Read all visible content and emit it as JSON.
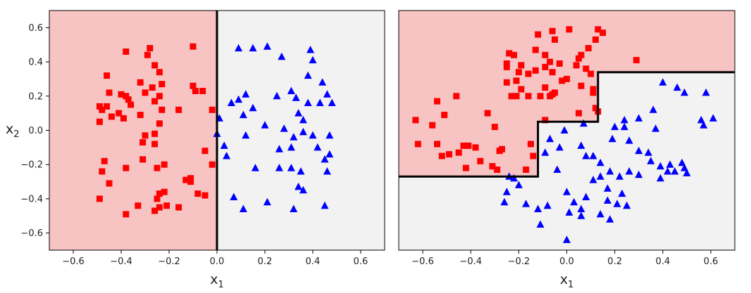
{
  "colors": {
    "class0_marker": "#ff0000",
    "class1_marker": "#0000ff",
    "class0_region": "#f8c3c3",
    "class1_region": "#f2f2f2",
    "boundary": "#000000",
    "frame": "#000000"
  },
  "chart_data": [
    {
      "type": "scatter",
      "xlabel_base": "x",
      "xlabel_sub": "1",
      "ylabel_base": "x",
      "ylabel_sub": "2",
      "xlim": [
        -0.7,
        0.7
      ],
      "ylim": [
        -0.7,
        0.7
      ],
      "xticks": [
        -0.6,
        -0.4,
        -0.2,
        0.0,
        0.2,
        0.4,
        0.6
      ],
      "xtick_labels": [
        "−0.6",
        "−0.4",
        "−0.2",
        "0.0",
        "0.2",
        "0.4",
        "0.6"
      ],
      "yticks": [
        0.6,
        0.4,
        0.2,
        0.0,
        -0.2,
        -0.4,
        -0.6
      ],
      "ytick_labels": [
        "0.6",
        "0.4",
        "0.2",
        "0.0",
        "−0.2",
        "−0.4",
        "−0.6"
      ],
      "grid": false,
      "decision_boundary": [
        [
          0.0,
          0.7
        ],
        [
          0.0,
          -0.7
        ]
      ],
      "class0_region_side": "left",
      "series": [
        {
          "marker": "square",
          "color": "#ff0000",
          "points": [
            [
              -0.49,
              0.14
            ],
            [
              -0.48,
              0.12
            ],
            [
              -0.46,
              0.14
            ],
            [
              -0.49,
              0.05
            ],
            [
              -0.44,
              0.08
            ],
            [
              -0.46,
              0.32
            ],
            [
              -0.45,
              0.22
            ],
            [
              -0.38,
              0.46
            ],
            [
              -0.4,
              0.21
            ],
            [
              -0.38,
              0.2
            ],
            [
              -0.41,
              0.1
            ],
            [
              -0.39,
              0.07
            ],
            [
              -0.37,
              0.18
            ],
            [
              -0.36,
              0.15
            ],
            [
              -0.32,
              0.28
            ],
            [
              -0.29,
              0.44
            ],
            [
              -0.28,
              0.48
            ],
            [
              -0.26,
              0.38
            ],
            [
              -0.24,
              0.34
            ],
            [
              -0.27,
              0.25
            ],
            [
              -0.23,
              0.27
            ],
            [
              -0.3,
              0.22
            ],
            [
              -0.26,
              0.17
            ],
            [
              -0.24,
              0.04
            ],
            [
              -0.32,
              0.09
            ],
            [
              -0.26,
              -0.02
            ],
            [
              -0.3,
              -0.03
            ],
            [
              -0.31,
              -0.07
            ],
            [
              -0.23,
              0.12
            ],
            [
              -0.24,
              0.2
            ],
            [
              -0.1,
              0.49
            ],
            [
              -0.1,
              0.26
            ],
            [
              -0.09,
              0.23
            ],
            [
              -0.06,
              0.23
            ],
            [
              -0.16,
              0.12
            ],
            [
              -0.02,
              0.12
            ],
            [
              -0.47,
              -0.18
            ],
            [
              -0.48,
              -0.24
            ],
            [
              -0.45,
              -0.31
            ],
            [
              -0.49,
              -0.4
            ],
            [
              -0.38,
              -0.22
            ],
            [
              -0.38,
              -0.49
            ],
            [
              -0.33,
              -0.44
            ],
            [
              -0.31,
              -0.17
            ],
            [
              -0.26,
              -0.08
            ],
            [
              -0.25,
              -0.22
            ],
            [
              -0.22,
              -0.2
            ],
            [
              -0.24,
              -0.37
            ],
            [
              -0.22,
              -0.36
            ],
            [
              -0.25,
              -0.4
            ],
            [
              -0.26,
              -0.47
            ],
            [
              -0.24,
              -0.45
            ],
            [
              -0.21,
              -0.44
            ],
            [
              -0.16,
              -0.45
            ],
            [
              -0.13,
              -0.29
            ],
            [
              -0.11,
              -0.3
            ],
            [
              -0.08,
              -0.37
            ],
            [
              -0.05,
              -0.38
            ],
            [
              -0.05,
              -0.12
            ],
            [
              -0.02,
              -0.2
            ],
            [
              -0.11,
              -0.28
            ]
          ]
        },
        {
          "marker": "triangle",
          "color": "#0000ff",
          "points": [
            [
              0.09,
              0.48
            ],
            [
              0.15,
              0.48
            ],
            [
              0.21,
              0.49
            ],
            [
              0.27,
              0.43
            ],
            [
              0.39,
              0.47
            ],
            [
              0.4,
              0.41
            ],
            [
              0.38,
              0.32
            ],
            [
              0.44,
              0.28
            ],
            [
              0.46,
              0.21
            ],
            [
              0.48,
              0.16
            ],
            [
              0.01,
              0.07
            ],
            [
              0.06,
              0.16
            ],
            [
              0.09,
              0.18
            ],
            [
              0.12,
              0.21
            ],
            [
              0.11,
              0.09
            ],
            [
              0.15,
              0.13
            ],
            [
              0.25,
              0.2
            ],
            [
              0.31,
              0.23
            ],
            [
              0.33,
              0.19
            ],
            [
              0.38,
              0.16
            ],
            [
              0.34,
              0.1
            ],
            [
              0.36,
              0.06
            ],
            [
              0.43,
              0.16
            ],
            [
              0.2,
              0.03
            ],
            [
              0.28,
              0.01
            ],
            [
              0.32,
              -0.04
            ],
            [
              0.36,
              -0.01
            ],
            [
              0.4,
              -0.03
            ],
            [
              0.47,
              -0.03
            ],
            [
              0.0,
              -0.02
            ],
            [
              0.03,
              -0.09
            ],
            [
              0.04,
              -0.15
            ],
            [
              0.12,
              -0.03
            ],
            [
              0.26,
              -0.11
            ],
            [
              0.31,
              -0.1
            ],
            [
              0.42,
              -0.1
            ],
            [
              0.47,
              -0.14
            ],
            [
              0.45,
              -0.17
            ],
            [
              0.16,
              -0.22
            ],
            [
              0.26,
              -0.22
            ],
            [
              0.31,
              -0.22
            ],
            [
              0.35,
              -0.24
            ],
            [
              0.46,
              -0.24
            ],
            [
              0.34,
              -0.33
            ],
            [
              0.36,
              -0.35
            ],
            [
              0.07,
              -0.39
            ],
            [
              0.11,
              -0.46
            ],
            [
              0.21,
              -0.42
            ],
            [
              0.32,
              -0.46
            ],
            [
              0.45,
              -0.44
            ]
          ]
        }
      ]
    },
    {
      "type": "scatter",
      "xlabel_base": "x",
      "xlabel_sub": "1",
      "xlim": [
        -0.7,
        0.7
      ],
      "ylim": [
        -0.7,
        0.7
      ],
      "xticks": [
        -0.6,
        -0.4,
        -0.2,
        0.0,
        0.2,
        0.4,
        0.6
      ],
      "xtick_labels": [
        "−0.6",
        "−0.4",
        "−0.2",
        "0.0",
        "0.2",
        "0.4",
        "0.6"
      ],
      "grid": false,
      "decision_boundary": [
        [
          -0.7,
          -0.27
        ],
        [
          -0.12,
          -0.27
        ],
        [
          -0.12,
          0.05
        ],
        [
          0.13,
          0.05
        ],
        [
          0.13,
          0.34
        ],
        [
          0.7,
          0.34
        ]
      ],
      "class0_region_side": "above",
      "series": [
        {
          "marker": "square",
          "color": "#ff0000",
          "points": [
            [
              -0.63,
              0.06
            ],
            [
              -0.62,
              -0.08
            ],
            [
              -0.56,
              0.03
            ],
            [
              -0.54,
              0.17
            ],
            [
              -0.51,
              0.09
            ],
            [
              -0.54,
              -0.08
            ],
            [
              -0.52,
              -0.15
            ],
            [
              -0.49,
              -0.14
            ],
            [
              -0.46,
              0.2
            ],
            [
              -0.45,
              -0.13
            ],
            [
              -0.43,
              -0.09
            ],
            [
              -0.41,
              -0.09
            ],
            [
              -0.42,
              -0.22
            ],
            [
              -0.38,
              -0.1
            ],
            [
              -0.33,
              0.1
            ],
            [
              -0.3,
              0.02
            ],
            [
              -0.31,
              -0.21
            ],
            [
              -0.29,
              -0.23
            ],
            [
              -0.28,
              -0.12
            ],
            [
              -0.27,
              -0.11
            ],
            [
              -0.25,
              0.37
            ],
            [
              -0.25,
              0.39
            ],
            [
              -0.24,
              0.45
            ],
            [
              -0.22,
              0.44
            ],
            [
              -0.25,
              0.28
            ],
            [
              -0.2,
              0.34
            ],
            [
              -0.19,
              0.38
            ],
            [
              -0.21,
              0.29
            ],
            [
              -0.23,
              0.2
            ],
            [
              -0.21,
              0.2
            ],
            [
              -0.19,
              0.24
            ],
            [
              -0.13,
              0.47
            ],
            [
              -0.09,
              0.44
            ],
            [
              -0.09,
              0.37
            ],
            [
              -0.07,
              0.4
            ],
            [
              -0.06,
              0.34
            ],
            [
              -0.09,
              0.25
            ],
            [
              -0.16,
              0.2
            ],
            [
              -0.11,
              0.2
            ],
            [
              -0.16,
              0.33
            ],
            [
              -0.12,
              0.56
            ],
            [
              -0.06,
              0.58
            ],
            [
              0.0,
              0.3
            ],
            [
              0.04,
              0.38
            ],
            [
              0.05,
              0.42
            ],
            [
              0.06,
              0.44
            ],
            [
              0.09,
              0.48
            ],
            [
              0.08,
              0.36
            ],
            [
              0.12,
              0.53
            ],
            [
              0.1,
              0.33
            ],
            [
              0.13,
              0.59
            ],
            [
              0.15,
              0.57
            ],
            [
              0.06,
              0.26
            ],
            [
              0.05,
              0.1
            ],
            [
              0.11,
              0.24
            ],
            [
              0.11,
              0.22
            ],
            [
              0.12,
              0.13
            ],
            [
              0.13,
              0.11
            ],
            [
              -0.05,
              0.22
            ],
            [
              -0.06,
              0.21
            ],
            [
              -0.07,
              0.2
            ],
            [
              -0.09,
              0.06
            ],
            [
              -0.14,
              -0.15
            ],
            [
              -0.15,
              -0.08
            ],
            [
              -0.17,
              -0.23
            ],
            [
              0.29,
              0.41
            ],
            [
              -0.05,
              0.53
            ],
            [
              0.01,
              0.59
            ],
            [
              -0.03,
              0.39
            ],
            [
              -0.02,
              0.29
            ],
            [
              -0.13,
              0.35
            ],
            [
              -0.36,
              -0.18
            ]
          ]
        },
        {
          "marker": "triangle",
          "color": "#0000ff",
          "points": [
            [
              0.4,
              0.28
            ],
            [
              0.46,
              0.25
            ],
            [
              0.49,
              0.22
            ],
            [
              0.58,
              0.22
            ],
            [
              0.36,
              0.12
            ],
            [
              0.3,
              0.07
            ],
            [
              0.24,
              0.06
            ],
            [
              0.24,
              0.02
            ],
            [
              0.2,
              0.02
            ],
            [
              0.56,
              0.06
            ],
            [
              0.57,
              0.03
            ],
            [
              0.61,
              0.07
            ],
            [
              0.37,
              0.01
            ],
            [
              0.19,
              -0.05
            ],
            [
              0.26,
              -0.06
            ],
            [
              0.3,
              -0.12
            ],
            [
              0.34,
              -0.13
            ],
            [
              0.35,
              -0.18
            ],
            [
              0.39,
              -0.21
            ],
            [
              0.43,
              -0.2
            ],
            [
              0.48,
              -0.19
            ],
            [
              0.49,
              -0.22
            ],
            [
              0.45,
              -0.24
            ],
            [
              0.39,
              -0.28
            ],
            [
              0.3,
              -0.26
            ],
            [
              0.26,
              -0.24
            ],
            [
              0.07,
              0.04
            ],
            [
              -0.07,
              -0.05
            ],
            [
              -0.01,
              0.0
            ],
            [
              0.06,
              -0.09
            ],
            [
              -0.09,
              -0.13
            ],
            [
              -0.03,
              -0.1
            ],
            [
              -0.04,
              -0.23
            ],
            [
              0.08,
              -0.15
            ],
            [
              0.11,
              -0.15
            ],
            [
              0.14,
              -0.19
            ],
            [
              0.18,
              -0.24
            ],
            [
              0.22,
              -0.27
            ],
            [
              0.14,
              -0.27
            ],
            [
              0.11,
              -0.29
            ],
            [
              0.17,
              -0.34
            ],
            [
              0.23,
              -0.37
            ],
            [
              0.21,
              -0.43
            ],
            [
              0.17,
              -0.41
            ],
            [
              0.0,
              -0.36
            ],
            [
              -0.08,
              -0.44
            ],
            [
              -0.25,
              -0.36
            ],
            [
              -0.26,
              -0.42
            ],
            [
              -0.17,
              -0.43
            ],
            [
              -0.12,
              -0.46
            ],
            [
              0.03,
              -0.42
            ],
            [
              0.08,
              -0.39
            ],
            [
              0.01,
              -0.48
            ],
            [
              0.06,
              -0.5
            ],
            [
              0.14,
              -0.49
            ],
            [
              0.18,
              -0.52
            ],
            [
              -0.22,
              -0.28
            ],
            [
              -0.2,
              -0.32
            ],
            [
              0.25,
              -0.44
            ],
            [
              0.06,
              -0.46
            ],
            [
              -0.11,
              -0.55
            ],
            [
              0.0,
              -0.64
            ],
            [
              -0.24,
              -0.27
            ],
            [
              0.42,
              -0.24
            ],
            [
              0.5,
              -0.25
            ]
          ]
        }
      ]
    }
  ]
}
